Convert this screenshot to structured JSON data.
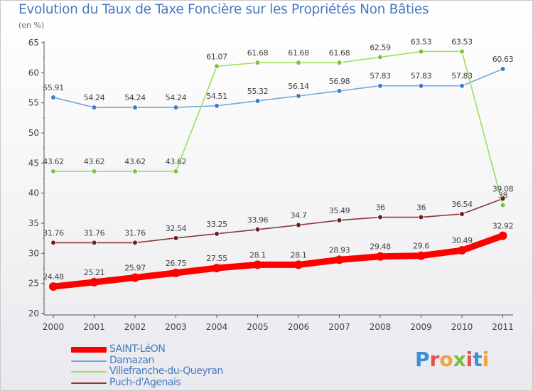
{
  "header": {
    "title": "Evolution du Taux de Taxe Foncière sur les Propriétés Non Bâties",
    "unit": "(en %)"
  },
  "logo": {
    "text": "Proxiti",
    "colors": [
      "#3b8fd8",
      "#e94e4e",
      "#f3a13a",
      "#7abf3c",
      "#e94e4e",
      "#3b8fd8",
      "#f3a13a"
    ]
  },
  "chart_data": {
    "type": "line",
    "title": "Evolution du Taux de Taxe Foncière sur les Propriétés Non Bâties",
    "ylabel": "(en %)",
    "xlabel": "",
    "ylim": [
      20,
      65
    ],
    "yticks": [
      20,
      25,
      30,
      35,
      40,
      45,
      50,
      55,
      60,
      65
    ],
    "categories": [
      "2000",
      "2001",
      "2002",
      "2003",
      "2004",
      "2005",
      "2006",
      "2007",
      "2008",
      "2009",
      "2010",
      "2011"
    ],
    "grid": false,
    "legend_position": "bottom-left",
    "series": [
      {
        "name": "SAINT-LéON",
        "color": "#ff0000",
        "marker": "#ff0000",
        "thick": true,
        "values": [
          24.48,
          25.21,
          25.97,
          26.75,
          27.55,
          28.1,
          28.1,
          28.93,
          29.48,
          29.6,
          30.49,
          32.92
        ],
        "labels": [
          "24.48",
          "25.21",
          "25.97",
          "26.75",
          "27.55",
          "28.1",
          "28.1",
          "28.93",
          "29.48",
          "29.6",
          "30.49",
          "32.92"
        ]
      },
      {
        "name": "Damazan",
        "color": "#7aa6d6",
        "marker": "#3a7fc4",
        "thick": false,
        "values": [
          55.91,
          54.24,
          54.24,
          54.24,
          54.51,
          55.32,
          56.14,
          56.98,
          57.83,
          57.83,
          57.83,
          60.63
        ],
        "labels": [
          "55.91",
          "54.24",
          "54.24",
          "54.24",
          "54.51",
          "55.32",
          "56.14",
          "56.98",
          "57.83",
          "57.83",
          "57.83",
          "60.63"
        ]
      },
      {
        "name": "Villefranche-du-Queyran",
        "color": "#9be05a",
        "marker": "#7cc23a",
        "thick": false,
        "values": [
          43.62,
          43.62,
          43.62,
          43.62,
          61.07,
          61.68,
          61.68,
          61.68,
          62.59,
          63.53,
          63.53,
          38
        ],
        "labels": [
          "43.62",
          "43.62",
          "43.62",
          "43.62",
          "61.07",
          "61.68",
          "61.68",
          "61.68",
          "62.59",
          "63.53",
          "63.53",
          "38"
        ]
      },
      {
        "name": "Puch-d'Agenais",
        "color": "#8a3a3a",
        "marker": "#6b1f1f",
        "thick": false,
        "values": [
          31.76,
          31.76,
          31.76,
          32.54,
          33.25,
          33.96,
          34.7,
          35.49,
          36,
          36,
          36.54,
          39.08
        ],
        "labels": [
          "31.76",
          "31.76",
          "31.76",
          "32.54",
          "33.25",
          "33.96",
          "34.7",
          "35.49",
          "36",
          "36",
          "36.54",
          "39.08"
        ]
      }
    ]
  }
}
